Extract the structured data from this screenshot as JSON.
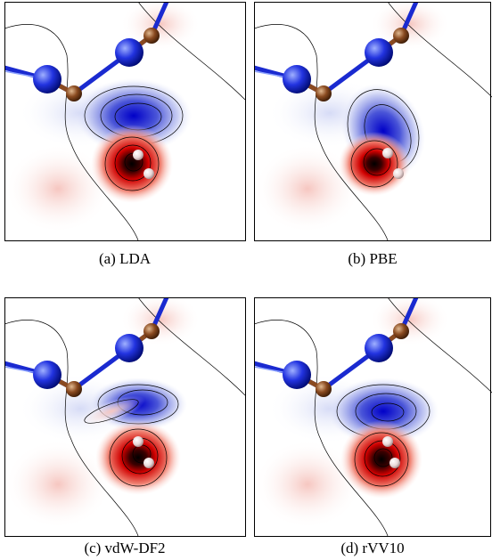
{
  "panels": [
    {
      "caption": "(a) LDA"
    },
    {
      "caption": "(b) PBE"
    },
    {
      "caption": "(c) vdW-DF2"
    },
    {
      "caption": "(d) rVV10"
    }
  ]
}
